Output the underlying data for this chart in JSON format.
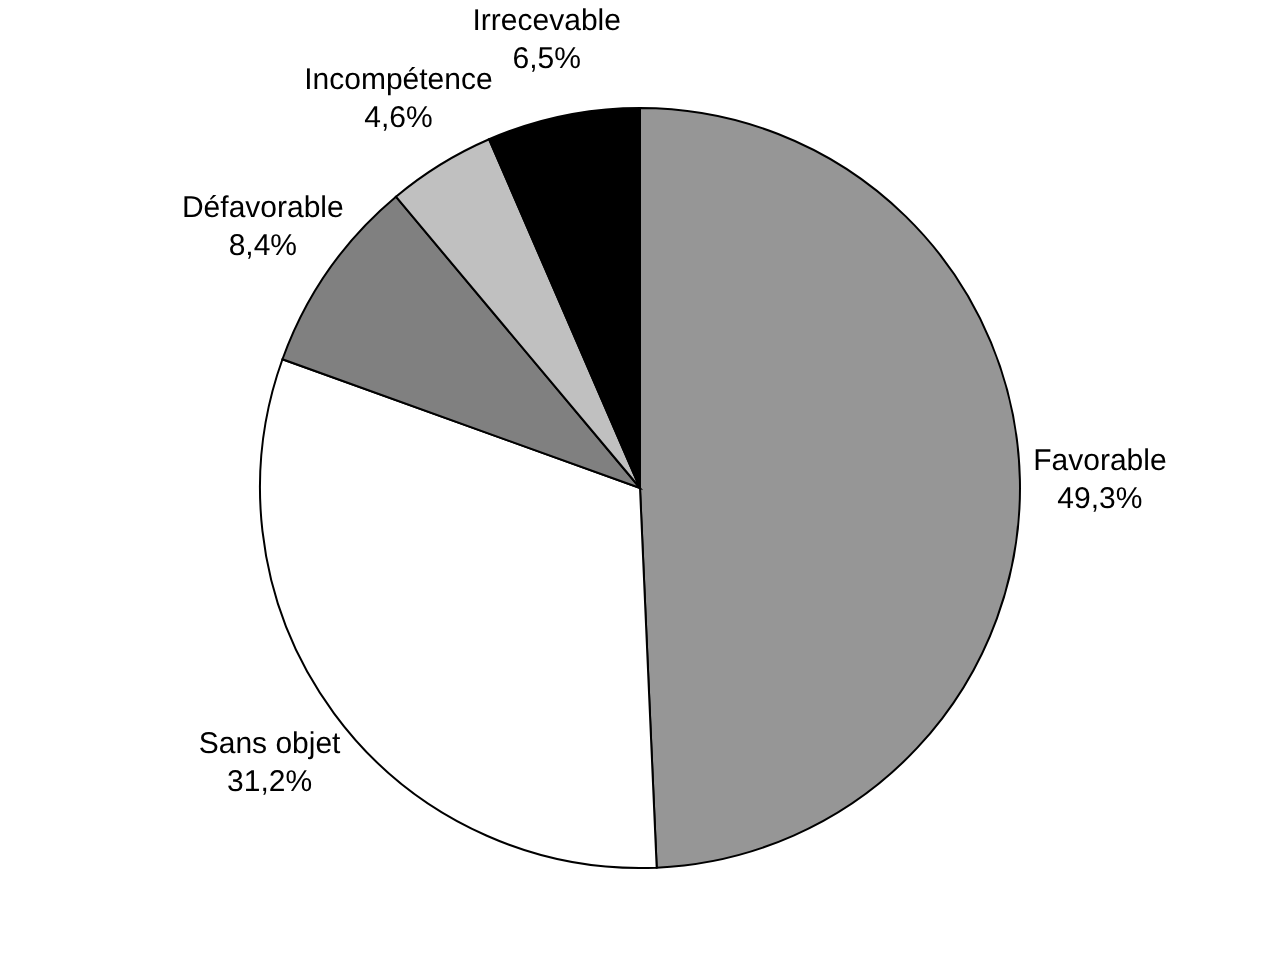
{
  "chart_data": {
    "type": "pie",
    "categories": [
      "Favorable",
      "Sans objet",
      "Défavorable",
      "Incompétence",
      "Irrecevable"
    ],
    "values": [
      49.3,
      31.2,
      8.4,
      4.6,
      6.5
    ],
    "colors": [
      "#969696",
      "#ffffff",
      "#808080",
      "#c0c0c0",
      "#000000"
    ],
    "value_labels": [
      "49,3%",
      "31,2%",
      "8,4%",
      "4,6%",
      "6,5%"
    ]
  }
}
